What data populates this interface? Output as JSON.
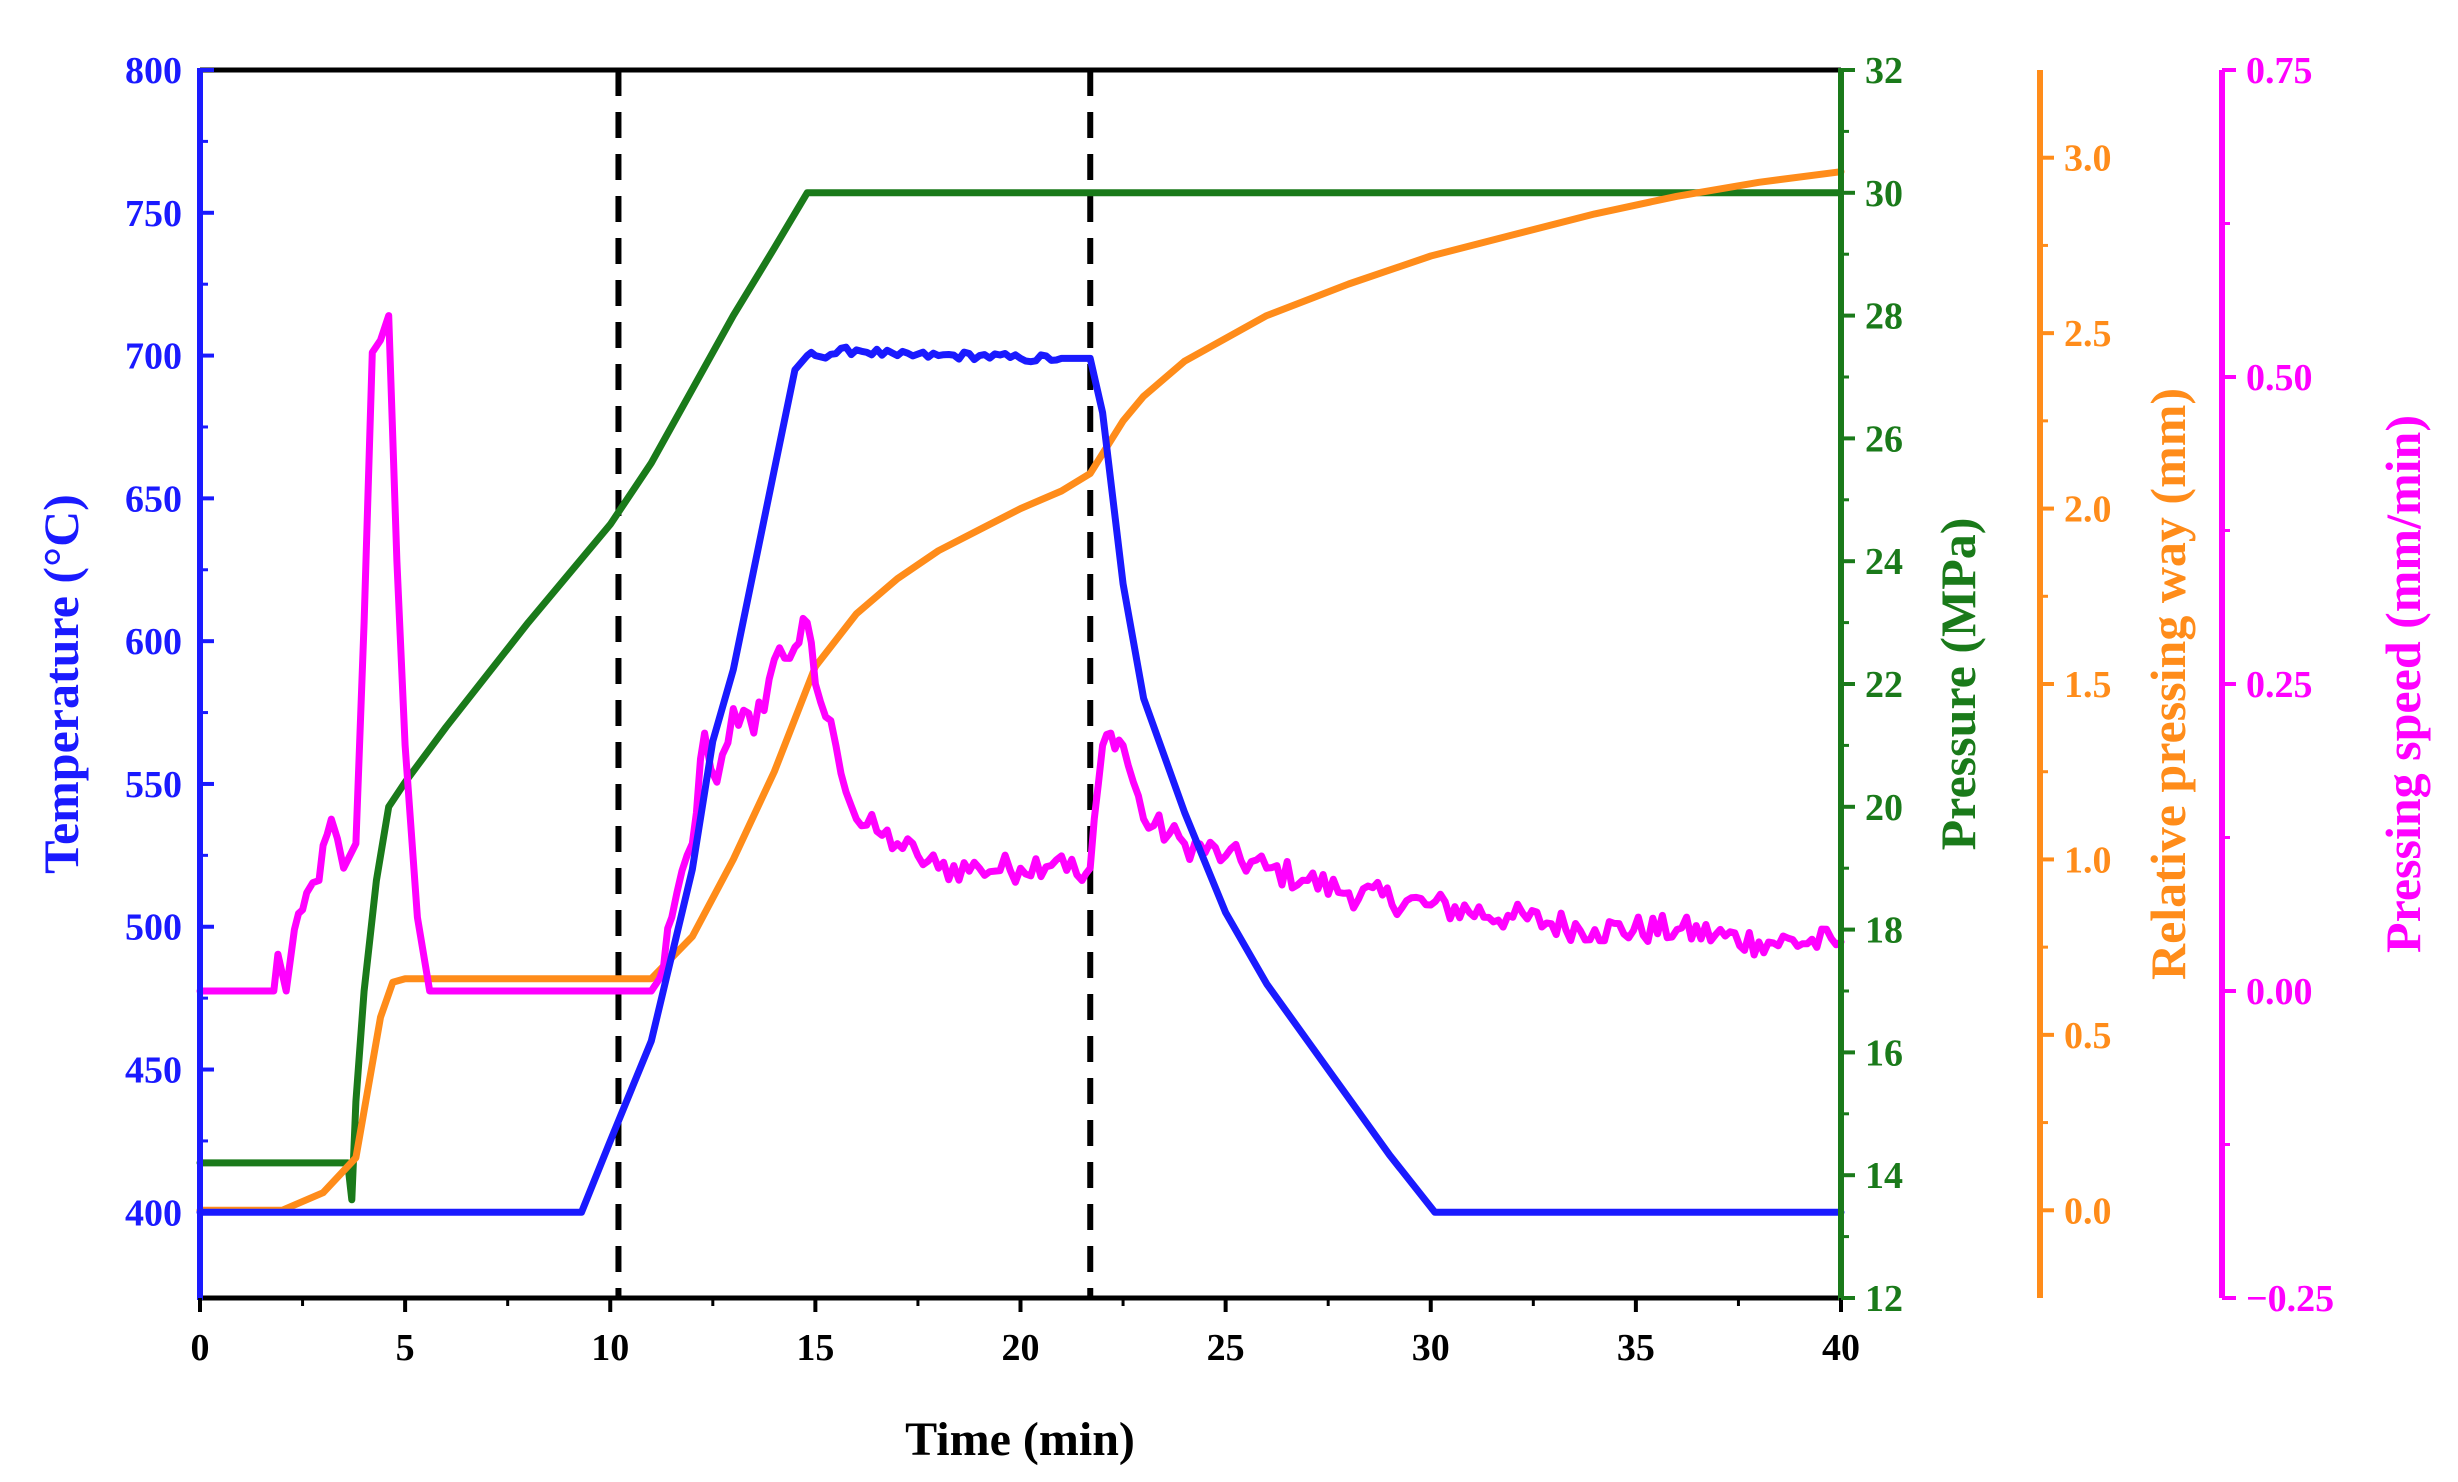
{
  "chart_data": {
    "type": "line",
    "title": "",
    "xlabel": "Time (min)",
    "xlim": [
      0,
      40
    ],
    "xticks": [
      0,
      5,
      10,
      15,
      20,
      25,
      30,
      35,
      40
    ],
    "vlines": [
      10.2,
      21.7
    ],
    "axes": [
      {
        "key": "temp",
        "label": "Temperature (°C)",
        "color": "#1a1aff",
        "side": "left",
        "ylim": [
          370,
          800
        ],
        "ticks": [
          400,
          450,
          500,
          550,
          600,
          650,
          700,
          750,
          800
        ],
        "tick_labels": [
          "400",
          "450",
          "500",
          "550",
          "600",
          "650",
          "700",
          "750",
          "800"
        ]
      },
      {
        "key": "pressure",
        "label": "Pressure (MPa)",
        "color": "#1a7a1a",
        "side": "right",
        "ylim": [
          12,
          32
        ],
        "ticks": [
          12,
          14,
          16,
          18,
          20,
          22,
          24,
          26,
          28,
          30,
          32
        ],
        "tick_labels": [
          "12",
          "14",
          "16",
          "18",
          "20",
          "22",
          "24",
          "26",
          "28",
          "30",
          "32"
        ]
      },
      {
        "key": "way",
        "label": "Relative pressing way (mm)",
        "color": "#ff8c1a",
        "side": "right",
        "ylim": [
          -0.25,
          3.25
        ],
        "ticks": [
          0.0,
          0.5,
          1.0,
          1.5,
          2.0,
          2.5,
          3.0
        ],
        "tick_labels": [
          "0.0",
          "0.5",
          "1.0",
          "1.5",
          "2.0",
          "2.5",
          "3.0"
        ]
      },
      {
        "key": "speed",
        "label": "Pressing speed (mm/min)",
        "color": "#ff00ff",
        "side": "right",
        "ylim": [
          -0.25,
          0.75
        ],
        "ticks": [
          -0.25,
          0.0,
          0.25,
          0.5,
          0.75
        ],
        "tick_labels": [
          "−0.25",
          "0.00",
          "0.25",
          "0.50",
          "0.75"
        ]
      }
    ],
    "series": [
      {
        "name": "Pressure",
        "axis": "pressure",
        "x": [
          0,
          3.6,
          3.7,
          3.8,
          4.0,
          4.3,
          4.6,
          5,
          6,
          8,
          10,
          11,
          12,
          13,
          14,
          14.8,
          40
        ],
        "y": [
          14.2,
          14.2,
          13.6,
          15.2,
          17.0,
          18.8,
          20.0,
          20.4,
          21.3,
          23.0,
          24.6,
          25.6,
          26.8,
          28.0,
          29.1,
          30.0,
          30.0
        ]
      },
      {
        "name": "Temperature",
        "axis": "temp",
        "x": [
          0,
          9.3,
          10,
          11,
          12,
          12.5,
          13,
          13.5,
          14,
          14.5,
          14.8,
          15,
          16,
          17,
          18,
          19,
          20,
          21,
          21.7,
          22,
          22.5,
          23,
          24,
          25,
          26,
          27,
          28,
          29,
          30.1,
          40
        ],
        "y": [
          400,
          400,
          425,
          460,
          520,
          565,
          590,
          625,
          660,
          695,
          700,
          700,
          702,
          700,
          700,
          700,
          699,
          699,
          699,
          680,
          620,
          580,
          540,
          505,
          480,
          460,
          440,
          420,
          400,
          400
        ],
        "noise": [
          0,
          0,
          0,
          0,
          0,
          0,
          0,
          0,
          0,
          0,
          1.5,
          1.5,
          1.5,
          1.5,
          1.5,
          1.5,
          1.5,
          1.5,
          0,
          0,
          0,
          0,
          0,
          0,
          0,
          0,
          0,
          0,
          0,
          0
        ]
      },
      {
        "name": "Relative pressing way",
        "axis": "way",
        "x": [
          0,
          2,
          3,
          3.8,
          4.1,
          4.4,
          4.7,
          5,
          10,
          11,
          12,
          13,
          14,
          15,
          16,
          17,
          18,
          19,
          20,
          21,
          21.7,
          22.5,
          23,
          24,
          26,
          28,
          30,
          32,
          34,
          36,
          38,
          40
        ],
        "y": [
          0.0,
          0.0,
          0.05,
          0.15,
          0.35,
          0.55,
          0.65,
          0.66,
          0.66,
          0.66,
          0.78,
          1.0,
          1.25,
          1.55,
          1.7,
          1.8,
          1.88,
          1.94,
          2.0,
          2.05,
          2.1,
          2.25,
          2.32,
          2.42,
          2.55,
          2.64,
          2.72,
          2.78,
          2.84,
          2.89,
          2.93,
          2.96
        ]
      },
      {
        "name": "Pressing speed",
        "axis": "speed",
        "x": [
          0,
          1.8,
          1.9,
          2.1,
          2.3,
          2.6,
          2.9,
          3.2,
          3.5,
          3.8,
          4.0,
          4.2,
          4.4,
          4.6,
          4.8,
          5.0,
          5.3,
          5.6,
          6.0,
          8,
          10,
          11,
          11.2,
          11.5,
          12,
          12.3,
          12.6,
          13,
          13.5,
          14,
          14.5,
          14.8,
          15.0,
          15.5,
          16,
          16.5,
          17,
          17.5,
          18,
          19,
          20,
          21,
          21.5,
          21.7,
          22.0,
          22.2,
          22.5,
          23,
          24,
          25,
          26,
          27,
          28,
          30,
          32,
          34,
          36,
          38,
          40
        ],
        "y": [
          0.0,
          0.0,
          0.03,
          0.0,
          0.05,
          0.08,
          0.09,
          0.14,
          0.1,
          0.12,
          0.3,
          0.52,
          0.53,
          0.55,
          0.35,
          0.2,
          0.06,
          0.0,
          0.0,
          0.0,
          0.0,
          0.0,
          0.01,
          0.06,
          0.12,
          0.21,
          0.17,
          0.23,
          0.21,
          0.27,
          0.28,
          0.3,
          0.25,
          0.2,
          0.14,
          0.13,
          0.12,
          0.11,
          0.1,
          0.1,
          0.1,
          0.11,
          0.09,
          0.1,
          0.2,
          0.21,
          0.2,
          0.14,
          0.12,
          0.11,
          0.1,
          0.09,
          0.08,
          0.07,
          0.06,
          0.05,
          0.05,
          0.04,
          0.04
        ],
        "noise": [
          0,
          0,
          0,
          0,
          0.01,
          0.012,
          0.012,
          0.012,
          0.012,
          0,
          0,
          0,
          0,
          0,
          0,
          0,
          0,
          0,
          0,
          0,
          0,
          0,
          0.01,
          0.012,
          0.015,
          0.015,
          0.015,
          0.015,
          0.015,
          0.015,
          0.015,
          0.012,
          0.012,
          0.012,
          0.012,
          0.012,
          0.012,
          0.012,
          0.012,
          0.012,
          0.012,
          0.012,
          0.012,
          0.01,
          0.01,
          0.01,
          0.012,
          0.012,
          0.012,
          0.012,
          0.012,
          0.012,
          0.012,
          0.012,
          0.012,
          0.012,
          0.012,
          0.012,
          0.012
        ]
      }
    ]
  }
}
